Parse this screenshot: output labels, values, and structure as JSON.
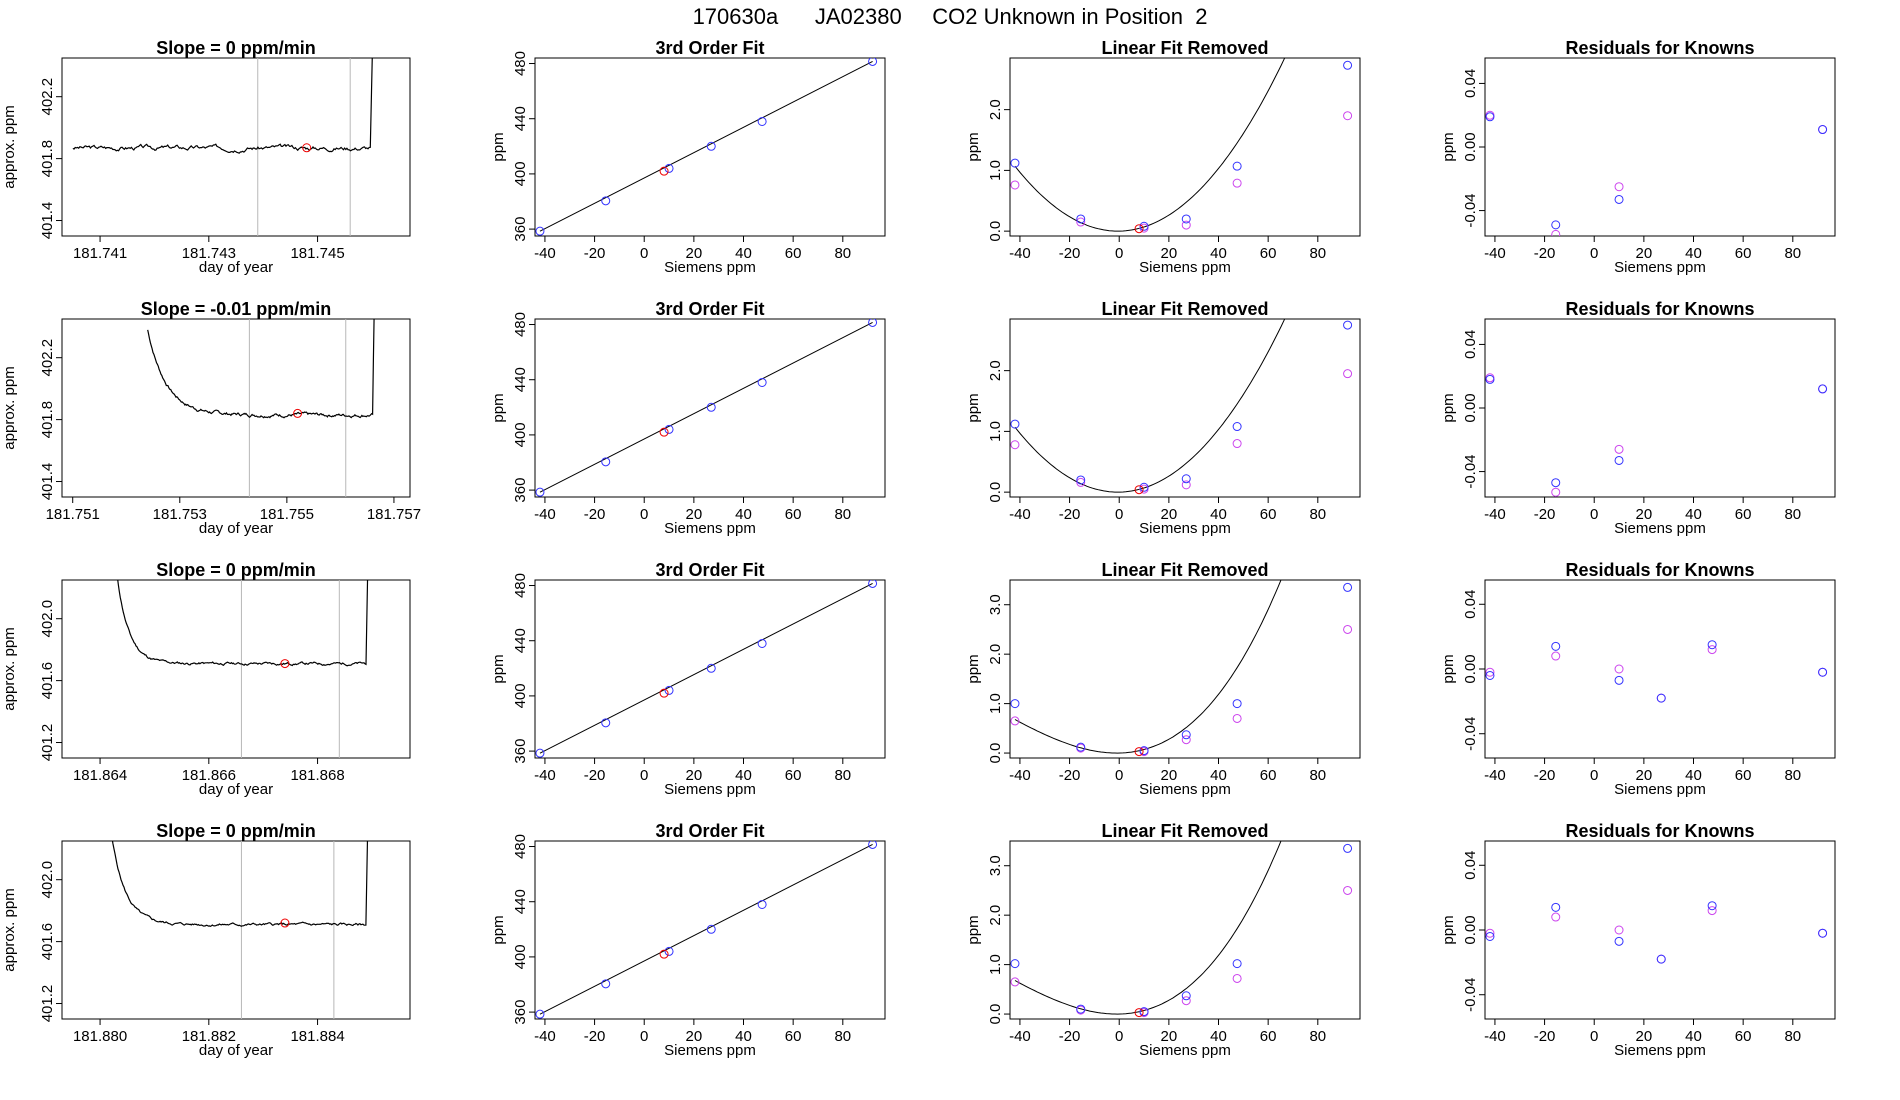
{
  "title": "170630a      JA02380     CO2 Unknown in Position  2",
  "colors": {
    "line": "#000000",
    "blue": "#3333ff",
    "magenta": "#cc44ee",
    "red": "#ee0000",
    "vline": "#b8b8b8",
    "axis": "#000000"
  },
  "chart_data": [
    {
      "type": "line",
      "title": "Slope =  0  ppm/min",
      "xlabel": "day of year",
      "ylabel": "approx. ppm",
      "xlim": [
        181.7403,
        181.7467
      ],
      "ylim": [
        401.3,
        402.45
      ],
      "xticks": [
        181.741,
        181.743,
        181.745
      ],
      "xtick_labels": [
        "181.741",
        "181.743",
        "181.745"
      ],
      "yticks": [
        401.4,
        401.8,
        402.2
      ],
      "ytick_labels": [
        "401.4",
        "401.8",
        "402.2"
      ],
      "vlines": [
        181.7439,
        181.7456
      ],
      "marker": [
        181.7448,
        401.87
      ],
      "trace": {
        "x0": 181.7405,
        "x1": 181.7461,
        "base": 401.87,
        "noise": 0.02,
        "seed": 3,
        "start_high": false,
        "end_rise": true
      }
    },
    {
      "type": "line",
      "title": "Slope =  -0.01  ppm/min",
      "xlabel": "day of year",
      "ylabel": "approx. ppm",
      "xlim": [
        181.7508,
        181.7573
      ],
      "ylim": [
        401.3,
        402.45
      ],
      "xticks": [
        181.751,
        181.753,
        181.755,
        181.757
      ],
      "xtick_labels": [
        "181.751",
        "181.753",
        "181.755",
        "181.757"
      ],
      "yticks": [
        401.4,
        401.8,
        402.2
      ],
      "ytick_labels": [
        "401.4",
        "401.8",
        "402.2"
      ],
      "vlines": [
        181.7543,
        181.7561
      ],
      "marker": [
        181.7552,
        401.84
      ],
      "trace": {
        "x0": 181.7524,
        "x1": 181.7567,
        "base": 401.83,
        "noise": 0.015,
        "seed": 7,
        "start_high": true,
        "start_amp": 0.55,
        "tau": 0.00035,
        "end_rise": true
      }
    },
    {
      "type": "line",
      "title": "Slope =  0  ppm/min",
      "xlabel": "day of year",
      "ylabel": "approx. ppm",
      "xlim": [
        181.8633,
        181.8697
      ],
      "ylim": [
        401.1,
        402.25
      ],
      "xticks": [
        181.864,
        181.866,
        181.868
      ],
      "xtick_labels": [
        "181.864",
        "181.866",
        "181.868"
      ],
      "yticks": [
        401.2,
        401.6,
        402.0
      ],
      "ytick_labels": [
        "401.2",
        "401.6",
        "402.0"
      ],
      "vlines": [
        181.8666,
        181.8684
      ],
      "marker": [
        181.8674,
        401.71
      ],
      "trace": {
        "x0": 181.8643,
        "x1": 181.869,
        "base": 401.71,
        "noise": 0.012,
        "seed": 11,
        "start_high": true,
        "start_amp": 0.6,
        "tau": 0.00022,
        "end_rise": true
      }
    },
    {
      "type": "line",
      "title": "Slope =  0  ppm/min",
      "xlabel": "day of year",
      "ylabel": "approx. ppm",
      "xlim": [
        181.8793,
        181.8857
      ],
      "ylim": [
        401.1,
        402.25
      ],
      "xticks": [
        181.88,
        181.882,
        181.884
      ],
      "xtick_labels": [
        "181.880",
        "181.882",
        "181.884"
      ],
      "yticks": [
        401.2,
        401.6,
        402.0
      ],
      "ytick_labels": [
        "401.2",
        "401.6",
        "402.0"
      ],
      "vlines": [
        181.8826,
        181.8843
      ],
      "marker": [
        181.8834,
        401.72
      ],
      "trace": {
        "x0": 181.8802,
        "x1": 181.885,
        "base": 401.71,
        "noise": 0.012,
        "seed": 5,
        "start_high": true,
        "start_amp": 0.6,
        "tau": 0.00026,
        "end_rise": true
      }
    },
    {
      "type": "scatter",
      "title": "3rd Order Fit",
      "xlabel": "Siemens ppm",
      "ylabel": "ppm",
      "xlim": [
        -44,
        97
      ],
      "ylim": [
        355,
        484
      ],
      "xticks": [
        -40,
        -20,
        0,
        20,
        40,
        60,
        80
      ],
      "xtick_labels": [
        "-40",
        "-20",
        "0",
        "20",
        "40",
        "60",
        "80"
      ],
      "yticks": [
        360,
        400,
        440,
        480
      ],
      "ytick_labels": [
        "360",
        "400",
        "440",
        "480"
      ],
      "line": [
        [
          -42,
          358.5
        ],
        [
          92,
          481.5
        ]
      ],
      "blue": [
        [
          -42,
          358.5
        ],
        [
          -15.5,
          380.5
        ],
        [
          10,
          404
        ],
        [
          27,
          420
        ],
        [
          47.5,
          438
        ],
        [
          92,
          481.5
        ]
      ],
      "red": [
        [
          8,
          402
        ]
      ]
    },
    {
      "type": "scatter",
      "title": "3rd Order Fit",
      "xlabel": "Siemens ppm",
      "ylabel": "ppm",
      "xlim": [
        -44,
        97
      ],
      "ylim": [
        355,
        484
      ],
      "xticks": [
        -40,
        -20,
        0,
        20,
        40,
        60,
        80
      ],
      "xtick_labels": [
        "-40",
        "-20",
        "0",
        "20",
        "40",
        "60",
        "80"
      ],
      "yticks": [
        360,
        400,
        440,
        480
      ],
      "ytick_labels": [
        "360",
        "400",
        "440",
        "480"
      ],
      "line": [
        [
          -42,
          358.5
        ],
        [
          92,
          481.5
        ]
      ],
      "blue": [
        [
          -42,
          358.5
        ],
        [
          -15.5,
          380.5
        ],
        [
          10,
          404
        ],
        [
          27,
          420
        ],
        [
          47.5,
          438
        ],
        [
          92,
          481.5
        ]
      ],
      "red": [
        [
          8,
          402
        ]
      ]
    },
    {
      "type": "scatter",
      "title": "3rd Order Fit",
      "xlabel": "Siemens ppm",
      "ylabel": "ppm",
      "xlim": [
        -44,
        97
      ],
      "ylim": [
        355,
        484
      ],
      "xticks": [
        -40,
        -20,
        0,
        20,
        40,
        60,
        80
      ],
      "xtick_labels": [
        "-40",
        "-20",
        "0",
        "20",
        "40",
        "60",
        "80"
      ],
      "yticks": [
        360,
        400,
        440,
        480
      ],
      "ytick_labels": [
        "360",
        "400",
        "440",
        "480"
      ],
      "line": [
        [
          -42,
          358.5
        ],
        [
          92,
          481.5
        ]
      ],
      "blue": [
        [
          -42,
          358.5
        ],
        [
          -15.5,
          380.5
        ],
        [
          10,
          404
        ],
        [
          27,
          420
        ],
        [
          47.5,
          438
        ],
        [
          92,
          481.5
        ]
      ],
      "red": [
        [
          8,
          402
        ]
      ]
    },
    {
      "type": "scatter",
      "title": "3rd Order Fit",
      "xlabel": "Siemens ppm",
      "ylabel": "ppm",
      "xlim": [
        -44,
        97
      ],
      "ylim": [
        355,
        484
      ],
      "xticks": [
        -40,
        -20,
        0,
        20,
        40,
        60,
        80
      ],
      "xtick_labels": [
        "-40",
        "-20",
        "0",
        "20",
        "40",
        "60",
        "80"
      ],
      "yticks": [
        360,
        400,
        440,
        480
      ],
      "ytick_labels": [
        "360",
        "400",
        "440",
        "480"
      ],
      "line": [
        [
          -42,
          358.5
        ],
        [
          92,
          481.5
        ]
      ],
      "blue": [
        [
          -42,
          358.5
        ],
        [
          -15.5,
          380.5
        ],
        [
          10,
          404
        ],
        [
          27,
          420
        ],
        [
          47.5,
          438
        ],
        [
          92,
          481.5
        ]
      ],
      "red": [
        [
          8,
          402
        ]
      ]
    },
    {
      "type": "scatter",
      "title": "Linear Fit Removed",
      "xlabel": "Siemens ppm",
      "ylabel": "ppm",
      "xlim": [
        -44,
        97
      ],
      "ylim": [
        -0.08,
        2.85
      ],
      "xticks": [
        -40,
        -20,
        0,
        20,
        40,
        60,
        80
      ],
      "xtick_labels": [
        "-40",
        "-20",
        "0",
        "20",
        "40",
        "60",
        "80"
      ],
      "yticks": [
        0,
        1,
        2
      ],
      "ytick_labels": [
        "0.0",
        "1.0",
        "2.0"
      ],
      "curve": {
        "x0": -42,
        "x1": 92,
        "a": 0.000625,
        "b": 1e-07,
        "vertex": -0.5
      },
      "blue": [
        [
          -42,
          1.12
        ],
        [
          -15.5,
          0.2
        ],
        [
          10,
          0.08
        ],
        [
          27,
          0.2
        ],
        [
          47.5,
          1.07
        ],
        [
          92,
          2.73
        ]
      ],
      "magenta": [
        [
          -42,
          0.76
        ],
        [
          -15.5,
          0.15
        ],
        [
          10,
          0.05
        ],
        [
          27,
          0.1
        ],
        [
          47.5,
          0.79
        ],
        [
          92,
          1.9
        ]
      ],
      "red": [
        [
          8,
          0.04
        ]
      ]
    },
    {
      "type": "scatter",
      "title": "Linear Fit Removed",
      "xlabel": "Siemens ppm",
      "ylabel": "ppm",
      "xlim": [
        -44,
        97
      ],
      "ylim": [
        -0.08,
        2.85
      ],
      "xticks": [
        -40,
        -20,
        0,
        20,
        40,
        60,
        80
      ],
      "xtick_labels": [
        "-40",
        "-20",
        "0",
        "20",
        "40",
        "60",
        "80"
      ],
      "yticks": [
        0,
        1,
        2
      ],
      "ytick_labels": [
        "0.0",
        "1.0",
        "2.0"
      ],
      "curve": {
        "x0": -42,
        "x1": 92,
        "a": 0.000625,
        "b": 1e-07,
        "vertex": -0.5
      },
      "blue": [
        [
          -42,
          1.12
        ],
        [
          -15.5,
          0.2
        ],
        [
          10,
          0.08
        ],
        [
          27,
          0.22
        ],
        [
          47.5,
          1.08
        ],
        [
          92,
          2.75
        ]
      ],
      "magenta": [
        [
          -42,
          0.78
        ],
        [
          -15.5,
          0.16
        ],
        [
          10,
          0.05
        ],
        [
          27,
          0.12
        ],
        [
          47.5,
          0.8
        ],
        [
          92,
          1.95
        ]
      ],
      "red": [
        [
          8,
          0.04
        ]
      ]
    },
    {
      "type": "scatter",
      "title": "Linear Fit Removed",
      "xlabel": "Siemens ppm",
      "ylabel": "ppm",
      "xlim": [
        -44,
        97
      ],
      "ylim": [
        -0.1,
        3.5
      ],
      "xticks": [
        -40,
        -20,
        0,
        20,
        40,
        60,
        80
      ],
      "xtick_labels": [
        "-40",
        "-20",
        "0",
        "20",
        "40",
        "60",
        "80"
      ],
      "yticks": [
        0,
        1,
        2,
        3
      ],
      "ytick_labels": [
        "0.0",
        "1.0",
        "2.0",
        "3.0"
      ],
      "curve": {
        "x0": -42,
        "x1": 92,
        "a": 0.000555,
        "b": 3.7e-06,
        "vertex": -1
      },
      "blue": [
        [
          -42,
          1.0
        ],
        [
          -15.5,
          0.12
        ],
        [
          10,
          0.05
        ],
        [
          27,
          0.37
        ],
        [
          47.5,
          1.0
        ],
        [
          92,
          3.35
        ]
      ],
      "magenta": [
        [
          -42,
          0.65
        ],
        [
          -15.5,
          0.1
        ],
        [
          10,
          0.03
        ],
        [
          27,
          0.27
        ],
        [
          47.5,
          0.7
        ],
        [
          92,
          2.5
        ]
      ],
      "red": [
        [
          8,
          0.03
        ]
      ]
    },
    {
      "type": "scatter",
      "title": "Linear Fit Removed",
      "xlabel": "Siemens ppm",
      "ylabel": "ppm",
      "xlim": [
        -44,
        97
      ],
      "ylim": [
        -0.1,
        3.5
      ],
      "xticks": [
        -40,
        -20,
        0,
        20,
        40,
        60,
        80
      ],
      "xtick_labels": [
        "-40",
        "-20",
        "0",
        "20",
        "40",
        "60",
        "80"
      ],
      "yticks": [
        0,
        1,
        2,
        3
      ],
      "ytick_labels": [
        "0.0",
        "1.0",
        "2.0",
        "3.0"
      ],
      "curve": {
        "x0": -42,
        "x1": 92,
        "a": 0.000555,
        "b": 3.7e-06,
        "vertex": -1
      },
      "blue": [
        [
          -42,
          1.02
        ],
        [
          -15.5,
          0.1
        ],
        [
          10,
          0.05
        ],
        [
          27,
          0.37
        ],
        [
          47.5,
          1.02
        ],
        [
          92,
          3.35
        ]
      ],
      "magenta": [
        [
          -42,
          0.65
        ],
        [
          -15.5,
          0.08
        ],
        [
          10,
          0.03
        ],
        [
          27,
          0.27
        ],
        [
          47.5,
          0.72
        ],
        [
          92,
          2.5
        ]
      ],
      "red": [
        [
          8,
          0.03
        ]
      ]
    },
    {
      "type": "scatter",
      "title": "Residuals for Knowns",
      "xlabel": "Siemens ppm",
      "ylabel": "ppm",
      "xlim": [
        -44,
        97
      ],
      "ylim": [
        -0.056,
        0.056
      ],
      "xticks": [
        -40,
        -20,
        0,
        20,
        40,
        60,
        80
      ],
      "xtick_labels": [
        "-40",
        "-20",
        "0",
        "20",
        "40",
        "60",
        "80"
      ],
      "yticks": [
        -0.04,
        0,
        0.04
      ],
      "ytick_labels": [
        "-0.04",
        "0.00",
        "0.04"
      ],
      "blue": [
        [
          -42,
          0.019
        ],
        [
          -15.5,
          -0.049
        ],
        [
          10,
          -0.033
        ],
        [
          92,
          0.011
        ]
      ],
      "magenta": [
        [
          -42,
          0.02
        ],
        [
          -15.5,
          -0.055
        ],
        [
          10,
          -0.025
        ],
        [
          92,
          0.011
        ]
      ]
    },
    {
      "type": "scatter",
      "title": "Residuals for Knowns",
      "xlabel": "Siemens ppm",
      "ylabel": "ppm",
      "xlim": [
        -44,
        97
      ],
      "ylim": [
        -0.056,
        0.056
      ],
      "xticks": [
        -40,
        -20,
        0,
        20,
        40,
        60,
        80
      ],
      "xtick_labels": [
        "-40",
        "-20",
        "0",
        "20",
        "40",
        "60",
        "80"
      ],
      "yticks": [
        -0.04,
        0,
        0.04
      ],
      "ytick_labels": [
        "-0.04",
        "0.00",
        "0.04"
      ],
      "blue": [
        [
          -42,
          0.018
        ],
        [
          -15.5,
          -0.047
        ],
        [
          10,
          -0.033
        ],
        [
          92,
          0.012
        ]
      ],
      "magenta": [
        [
          -42,
          0.019
        ],
        [
          -15.5,
          -0.053
        ],
        [
          10,
          -0.026
        ],
        [
          92,
          0.012
        ]
      ]
    },
    {
      "type": "scatter",
      "title": "Residuals for Knowns",
      "xlabel": "Siemens ppm",
      "ylabel": "ppm",
      "xlim": [
        -44,
        97
      ],
      "ylim": [
        -0.055,
        0.055
      ],
      "xticks": [
        -40,
        -20,
        0,
        20,
        40,
        60,
        80
      ],
      "xtick_labels": [
        "-40",
        "-20",
        "0",
        "20",
        "40",
        "60",
        "80"
      ],
      "yticks": [
        -0.04,
        0,
        0.04
      ],
      "ytick_labels": [
        "-0.04",
        "0.00",
        "0.04"
      ],
      "blue": [
        [
          -42,
          -0.004
        ],
        [
          -15.5,
          0.014
        ],
        [
          10,
          -0.007
        ],
        [
          27,
          -0.018
        ],
        [
          47.5,
          0.015
        ],
        [
          92,
          -0.002
        ]
      ],
      "magenta": [
        [
          -42,
          -0.002
        ],
        [
          -15.5,
          0.008
        ],
        [
          10,
          0.0
        ],
        [
          27,
          -0.018
        ],
        [
          47.5,
          0.012
        ],
        [
          92,
          -0.002
        ]
      ]
    },
    {
      "type": "scatter",
      "title": "Residuals for Knowns",
      "xlabel": "Siemens ppm",
      "ylabel": "ppm",
      "xlim": [
        -44,
        97
      ],
      "ylim": [
        -0.055,
        0.055
      ],
      "xticks": [
        -40,
        -20,
        0,
        20,
        40,
        60,
        80
      ],
      "xtick_labels": [
        "-40",
        "-20",
        "0",
        "20",
        "40",
        "60",
        "80"
      ],
      "yticks": [
        -0.04,
        0,
        0.04
      ],
      "ytick_labels": [
        "-0.04",
        "0.00",
        "0.04"
      ],
      "blue": [
        [
          -42,
          -0.004
        ],
        [
          -15.5,
          0.014
        ],
        [
          10,
          -0.007
        ],
        [
          27,
          -0.018
        ],
        [
          47.5,
          0.015
        ],
        [
          92,
          -0.002
        ]
      ],
      "magenta": [
        [
          -42,
          -0.002
        ],
        [
          -15.5,
          0.008
        ],
        [
          10,
          0.0
        ],
        [
          27,
          -0.018
        ],
        [
          47.5,
          0.012
        ],
        [
          92,
          -0.002
        ]
      ]
    }
  ]
}
